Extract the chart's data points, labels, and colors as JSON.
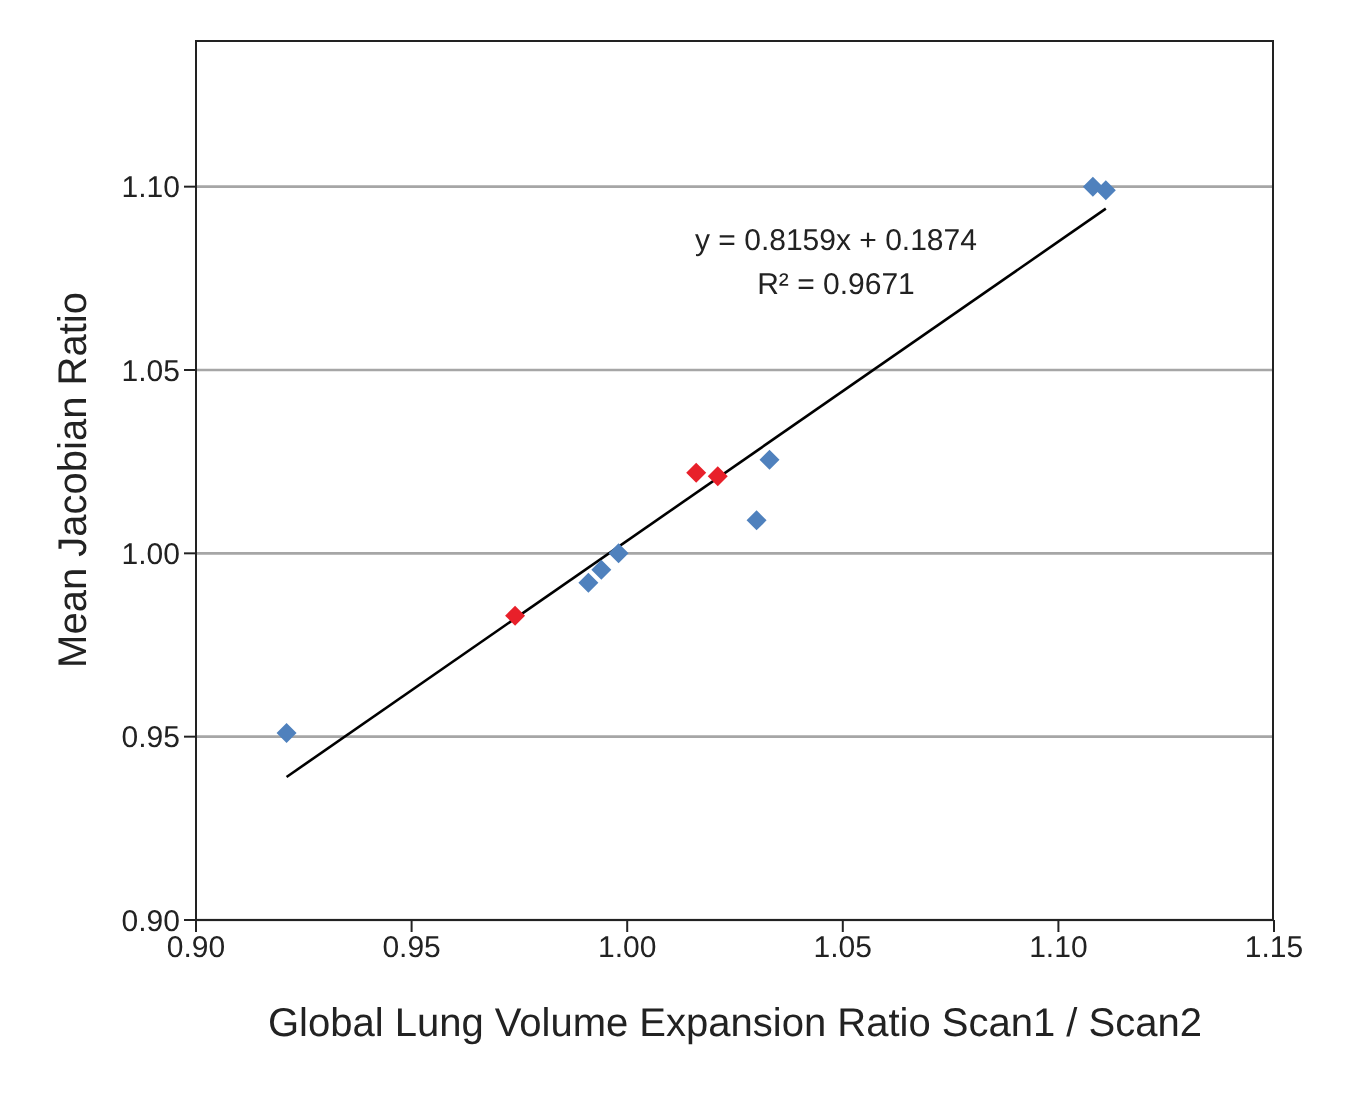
{
  "chart_data": {
    "type": "scatter",
    "xlabel": "Global Lung Volume Expansion Ratio Scan1 / Scan2",
    "ylabel": "Mean Jacobian Ratio",
    "xlim": [
      0.9,
      1.15
    ],
    "xticks": [
      {
        "value": 0.9,
        "label": "0.90"
      },
      {
        "value": 0.95,
        "label": "0.95"
      },
      {
        "value": 1.0,
        "label": "1.00"
      },
      {
        "value": 1.05,
        "label": "1.05"
      },
      {
        "value": 1.1,
        "label": "1.10"
      },
      {
        "value": 1.15,
        "label": "1.15"
      }
    ],
    "ylim": [
      0.9,
      1.14
    ],
    "yticks": [
      {
        "value": 0.9,
        "label": "0.90"
      },
      {
        "value": 0.95,
        "label": "0.95"
      },
      {
        "value": 1.0,
        "label": "1.00"
      },
      {
        "value": 1.05,
        "label": "1.05"
      },
      {
        "value": 1.1,
        "label": "1.10"
      }
    ],
    "grid": "y",
    "marker": "diamond",
    "legend": false,
    "series": [
      {
        "color": "#4f81bd",
        "x": [
          0.921,
          0.991,
          0.994,
          0.998,
          1.03,
          1.033,
          1.108,
          1.111
        ],
        "values": [
          0.951,
          0.992,
          0.9955,
          1.0,
          1.009,
          1.0255,
          1.1,
          1.099
        ]
      },
      {
        "color": "#e8202a",
        "x": [
          0.974,
          1.016,
          1.021
        ],
        "values": [
          0.983,
          1.022,
          1.021
        ]
      },
      {
        "type": "line",
        "marker": "none",
        "color": "#000000",
        "x": [
          0.921,
          1.111
        ],
        "values": [
          0.939,
          1.094
        ]
      }
    ],
    "annotations": [
      "y = 0.8159x + 0.1874",
      "R² = 0.9671"
    ]
  }
}
